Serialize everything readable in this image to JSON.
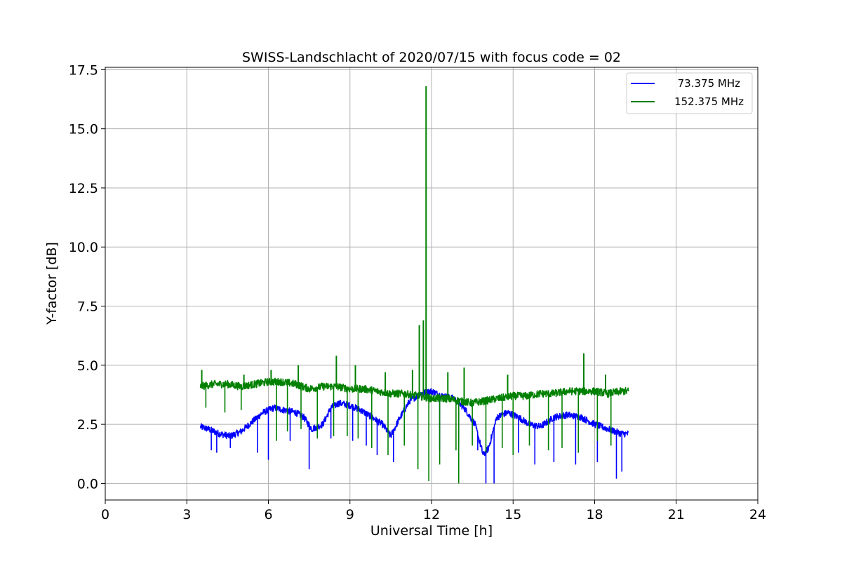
{
  "chart_data": {
    "type": "line",
    "title": "SWISS-Landschlacht of 2020/07/15 with focus code = 02",
    "xlabel": "Universal Time [h]",
    "ylabel": "Y-factor [dB]",
    "xlim": [
      0,
      24
    ],
    "ylim": [
      -0.7,
      17.6
    ],
    "x_ticks": [
      0,
      3,
      6,
      9,
      12,
      15,
      18,
      21,
      24
    ],
    "x_tick_labels": [
      "0",
      "3",
      "6",
      "9",
      "12",
      "15",
      "18",
      "21",
      "24"
    ],
    "y_ticks": [
      0.0,
      2.5,
      5.0,
      7.5,
      10.0,
      12.5,
      15.0,
      17.5
    ],
    "y_tick_labels": [
      "0.0",
      "2.5",
      "5.0",
      "7.5",
      "10.0",
      "12.5",
      "15.0",
      "17.5"
    ],
    "grid": true,
    "legend_position": "top-right",
    "x_range_data": [
      3.5,
      19.25
    ],
    "series": [
      {
        "name": "73.375 MHz",
        "color": "#0000ff",
        "x": [
          3.5,
          3.8,
          4.2,
          4.6,
          5.0,
          5.4,
          5.8,
          6.2,
          6.6,
          7.0,
          7.3,
          7.6,
          8.0,
          8.3,
          8.6,
          9.0,
          9.4,
          9.8,
          10.2,
          10.5,
          10.8,
          11.2,
          11.6,
          12.0,
          12.4,
          12.8,
          13.2,
          13.6,
          13.9,
          14.1,
          14.4,
          14.8,
          15.2,
          15.6,
          16.0,
          16.5,
          17.0,
          17.5,
          18.0,
          18.5,
          19.0,
          19.25
        ],
        "values": [
          2.4,
          2.3,
          2.1,
          2.0,
          2.2,
          2.6,
          3.0,
          3.2,
          3.1,
          3.0,
          2.8,
          2.3,
          2.5,
          3.2,
          3.4,
          3.3,
          3.1,
          2.8,
          2.5,
          2.0,
          2.7,
          3.5,
          3.8,
          3.9,
          3.7,
          3.6,
          3.2,
          2.5,
          1.2,
          1.5,
          2.8,
          3.0,
          2.8,
          2.5,
          2.4,
          2.8,
          2.9,
          2.8,
          2.5,
          2.3,
          2.1,
          2.1
        ],
        "dips": [
          [
            3.9,
            1.4
          ],
          [
            4.1,
            1.3
          ],
          [
            4.6,
            1.5
          ],
          [
            5.6,
            1.3
          ],
          [
            6.0,
            1.0
          ],
          [
            6.8,
            1.8
          ],
          [
            7.5,
            0.6
          ],
          [
            8.3,
            1.9
          ],
          [
            9.1,
            1.8
          ],
          [
            9.6,
            1.6
          ],
          [
            10.0,
            1.2
          ],
          [
            10.6,
            0.9
          ],
          [
            12.3,
            1.4
          ],
          [
            13.0,
            1.6
          ],
          [
            13.7,
            1.4
          ],
          [
            14.0,
            0.0
          ],
          [
            14.3,
            0.0
          ],
          [
            15.2,
            1.3
          ],
          [
            15.8,
            0.8
          ],
          [
            16.5,
            0.9
          ],
          [
            17.3,
            0.8
          ],
          [
            18.1,
            0.9
          ],
          [
            18.8,
            0.2
          ],
          [
            19.0,
            0.5
          ]
        ]
      },
      {
        "name": "152.375 MHz",
        "color": "#008000",
        "x": [
          3.5,
          4.0,
          4.5,
          5.0,
          5.5,
          6.0,
          6.5,
          7.0,
          7.5,
          8.0,
          8.5,
          9.0,
          9.5,
          10.0,
          10.5,
          11.0,
          11.5,
          12.0,
          12.5,
          13.0,
          13.5,
          14.0,
          14.5,
          15.0,
          15.5,
          16.0,
          16.5,
          17.0,
          17.5,
          18.0,
          18.5,
          19.0,
          19.25
        ],
        "values": [
          4.1,
          4.2,
          4.2,
          4.1,
          4.2,
          4.3,
          4.3,
          4.2,
          4.0,
          4.1,
          4.1,
          4.0,
          4.0,
          3.9,
          3.8,
          3.8,
          3.7,
          3.6,
          3.6,
          3.5,
          3.4,
          3.5,
          3.6,
          3.7,
          3.7,
          3.8,
          3.8,
          3.9,
          3.9,
          3.9,
          3.8,
          3.9,
          3.9
        ],
        "spikes": [
          [
            3.55,
            4.8
          ],
          [
            5.1,
            4.6
          ],
          [
            6.1,
            4.8
          ],
          [
            7.1,
            5.0
          ],
          [
            8.5,
            5.4
          ],
          [
            9.2,
            5.0
          ],
          [
            10.3,
            4.7
          ],
          [
            11.3,
            4.8
          ],
          [
            11.55,
            6.7
          ],
          [
            11.7,
            6.9
          ],
          [
            11.8,
            16.8
          ],
          [
            12.6,
            4.7
          ],
          [
            13.2,
            4.9
          ],
          [
            14.8,
            4.6
          ],
          [
            17.6,
            5.5
          ],
          [
            18.4,
            4.6
          ]
        ],
        "dips": [
          [
            3.7,
            3.2
          ],
          [
            4.4,
            3.0
          ],
          [
            5.0,
            3.1
          ],
          [
            6.3,
            1.8
          ],
          [
            6.7,
            2.2
          ],
          [
            7.2,
            2.3
          ],
          [
            7.8,
            1.9
          ],
          [
            8.4,
            2.0
          ],
          [
            8.9,
            2.0
          ],
          [
            9.3,
            1.9
          ],
          [
            9.8,
            1.5
          ],
          [
            10.4,
            1.2
          ],
          [
            11.0,
            1.6
          ],
          [
            11.5,
            0.6
          ],
          [
            11.9,
            0.1
          ],
          [
            12.3,
            0.8
          ],
          [
            12.9,
            1.4
          ],
          [
            13.0,
            0.0
          ],
          [
            13.5,
            1.6
          ],
          [
            14.0,
            1.3
          ],
          [
            14.6,
            1.5
          ],
          [
            15.0,
            1.2
          ],
          [
            15.6,
            1.6
          ],
          [
            16.3,
            1.4
          ],
          [
            16.8,
            1.5
          ],
          [
            17.4,
            1.3
          ],
          [
            18.1,
            1.8
          ],
          [
            18.6,
            1.6
          ]
        ]
      }
    ]
  }
}
